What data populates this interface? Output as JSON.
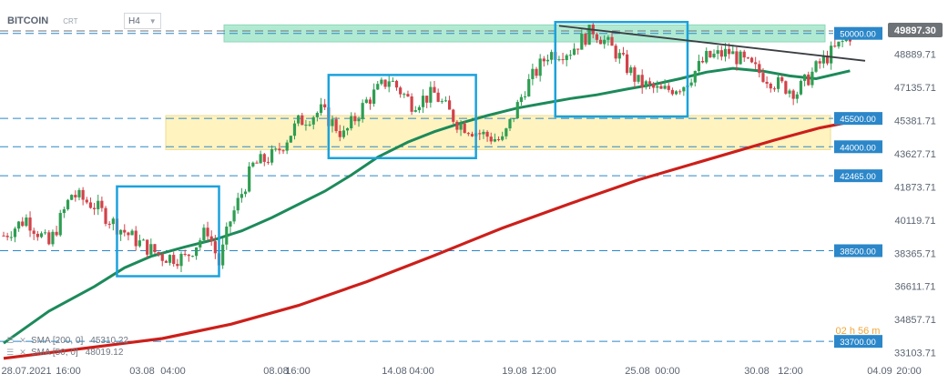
{
  "header": {
    "symbol": "BITCOIN",
    "symbol_sub": "CRT",
    "timeframe": "H4"
  },
  "price_axis": {
    "ticks": [
      "48889.71",
      "47135.71",
      "45381.71",
      "43627.71",
      "41873.71",
      "40119.71",
      "38365.71",
      "36611.71",
      "34857.71",
      "33103.71"
    ],
    "current_price": "49897.30"
  },
  "time_axis": {
    "ticks": [
      "28.07.2021",
      "16:00",
      "03.08",
      "04:00",
      "08.08",
      "16:00",
      "14.08",
      "04:00",
      "19.08",
      "12:00",
      "25.08",
      "00:00",
      "30.08",
      "12:00",
      "04.09",
      "20:00"
    ]
  },
  "levels": [
    "50000.00",
    "45500.00",
    "44000.00",
    "42465.00",
    "38500.00",
    "33700.00"
  ],
  "countdown": "02 h 56 m",
  "indicators": [
    {
      "label": "SMA [200, 0]",
      "value": "45310.22",
      "color": "#cc1f1a"
    },
    {
      "label": "SMA [50, 0]",
      "value": "48019.12",
      "color": "#1c8a5a"
    }
  ],
  "chart_data": {
    "type": "candlestick",
    "timeframe": "H4",
    "x_range": [
      "2021-07-28",
      "2021-09-04"
    ],
    "y_range": [
      32600,
      50900
    ],
    "current_price": 49897.3,
    "horizontal_levels": [
      50000,
      45500,
      44000,
      42465,
      38500,
      33700
    ],
    "zones": [
      {
        "from": 49550,
        "to": 50450,
        "color": "#9ee5c8"
      },
      {
        "from": 43850,
        "to": 45650,
        "color": "#fff0b0"
      }
    ],
    "boxes": [
      {
        "x": [
          "2021-08-02 00:00",
          "2021-08-06 12:00"
        ],
        "y": [
          37150,
          41900
        ]
      },
      {
        "x": [
          "2021-08-11 08:00",
          "2021-08-17 20:00"
        ],
        "y": [
          43400,
          47800
        ]
      },
      {
        "x": [
          "2021-08-21 08:00",
          "2021-08-27 04:00"
        ],
        "y": [
          45600,
          50600
        ]
      }
    ],
    "trendline": [
      {
        "x": "2021-08-21 12:00",
        "y": 50400
      },
      {
        "x": "2021-09-04 00:00",
        "y": 48550
      }
    ],
    "sma_200": [
      [
        "2021-07-28 00:00",
        32800
      ],
      [
        "2021-07-31 00:00",
        33250
      ],
      [
        "2021-08-04 00:00",
        33850
      ],
      [
        "2021-08-07 00:00",
        34600
      ],
      [
        "2021-08-10 00:00",
        35600
      ],
      [
        "2021-08-13 00:00",
        36850
      ],
      [
        "2021-08-16 00:00",
        38250
      ],
      [
        "2021-08-19 00:00",
        39700
      ],
      [
        "2021-08-22 00:00",
        41000
      ],
      [
        "2021-08-25 00:00",
        42250
      ],
      [
        "2021-08-28 00:00",
        43300
      ],
      [
        "2021-08-31 00:00",
        44350
      ],
      [
        "2021-09-02 00:00",
        45000
      ],
      [
        "2021-09-03 08:00",
        45310
      ]
    ],
    "sma_50": [
      [
        "2021-07-28 00:00",
        33600
      ],
      [
        "2021-07-30 00:00",
        35300
      ],
      [
        "2021-08-01 00:00",
        36600
      ],
      [
        "2021-08-02 08:00",
        37600
      ],
      [
        "2021-08-03 12:00",
        38200
      ],
      [
        "2021-08-05 00:00",
        38700
      ],
      [
        "2021-08-06 08:00",
        39100
      ],
      [
        "2021-08-07 12:00",
        39550
      ],
      [
        "2021-08-08 20:00",
        40250
      ],
      [
        "2021-08-10 00:00",
        40950
      ],
      [
        "2021-08-11 04:00",
        41650
      ],
      [
        "2021-08-12 08:00",
        42500
      ],
      [
        "2021-08-13 12:00",
        43450
      ],
      [
        "2021-08-14 20:00",
        44250
      ],
      [
        "2021-08-16 00:00",
        44800
      ],
      [
        "2021-08-17 04:00",
        45250
      ],
      [
        "2021-08-18 08:00",
        45650
      ],
      [
        "2021-08-19 16:00",
        46050
      ],
      [
        "2021-08-20 20:00",
        46300
      ],
      [
        "2021-08-22 00:00",
        46550
      ],
      [
        "2021-08-23 04:00",
        46750
      ],
      [
        "2021-08-24 12:00",
        47050
      ],
      [
        "2021-08-25 16:00",
        47300
      ],
      [
        "2021-08-26 20:00",
        47600
      ],
      [
        "2021-08-28 00:00",
        47950
      ],
      [
        "2021-08-29 04:00",
        48150
      ],
      [
        "2021-08-30 12:00",
        48000
      ],
      [
        "2021-08-31 16:00",
        47750
      ],
      [
        "2021-09-01 20:00",
        47600
      ],
      [
        "2021-09-03 08:00",
        48019
      ]
    ],
    "close_path": [
      [
        "2021-07-28 00:00",
        39300
      ],
      [
        "2021-07-29 00:00",
        40200
      ],
      [
        "2021-07-30 00:00",
        38800
      ],
      [
        "2021-07-31 00:00",
        41500
      ],
      [
        "2021-08-01 00:00",
        40900
      ],
      [
        "2021-08-02 00:00",
        39800
      ],
      [
        "2021-08-03 00:00",
        38900
      ],
      [
        "2021-08-04 00:00",
        38200
      ],
      [
        "2021-08-05 00:00",
        38100
      ],
      [
        "2021-08-06 00:00",
        39600
      ],
      [
        "2021-08-06 12:00",
        37800
      ],
      [
        "2021-08-07 00:00",
        40100
      ],
      [
        "2021-08-08 00:00",
        43000
      ],
      [
        "2021-08-09 00:00",
        43600
      ],
      [
        "2021-08-10 00:00",
        45300
      ],
      [
        "2021-08-11 00:00",
        45900
      ],
      [
        "2021-08-12 00:00",
        44600
      ],
      [
        "2021-08-13 00:00",
        46400
      ],
      [
        "2021-08-14 00:00",
        47600
      ],
      [
        "2021-08-15 00:00",
        46300
      ],
      [
        "2021-08-16 00:00",
        46800
      ],
      [
        "2021-08-17 00:00",
        45300
      ],
      [
        "2021-08-18 00:00",
        44700
      ],
      [
        "2021-08-19 00:00",
        44300
      ],
      [
        "2021-08-20 00:00",
        47100
      ],
      [
        "2021-08-21 00:00",
        48900
      ],
      [
        "2021-08-22 00:00",
        49100
      ],
      [
        "2021-08-23 00:00",
        50200
      ],
      [
        "2021-08-24 00:00",
        49000
      ],
      [
        "2021-08-25 00:00",
        47400
      ],
      [
        "2021-08-26 00:00",
        46900
      ],
      [
        "2021-08-27 00:00",
        47300
      ],
      [
        "2021-08-28 00:00",
        48700
      ],
      [
        "2021-08-29 00:00",
        49000
      ],
      [
        "2021-08-30 00:00",
        48200
      ],
      [
        "2021-08-31 00:00",
        47400
      ],
      [
        "2021-09-01 00:00",
        46900
      ],
      [
        "2021-09-02 00:00",
        48400
      ],
      [
        "2021-09-03 08:00",
        49897
      ]
    ]
  }
}
